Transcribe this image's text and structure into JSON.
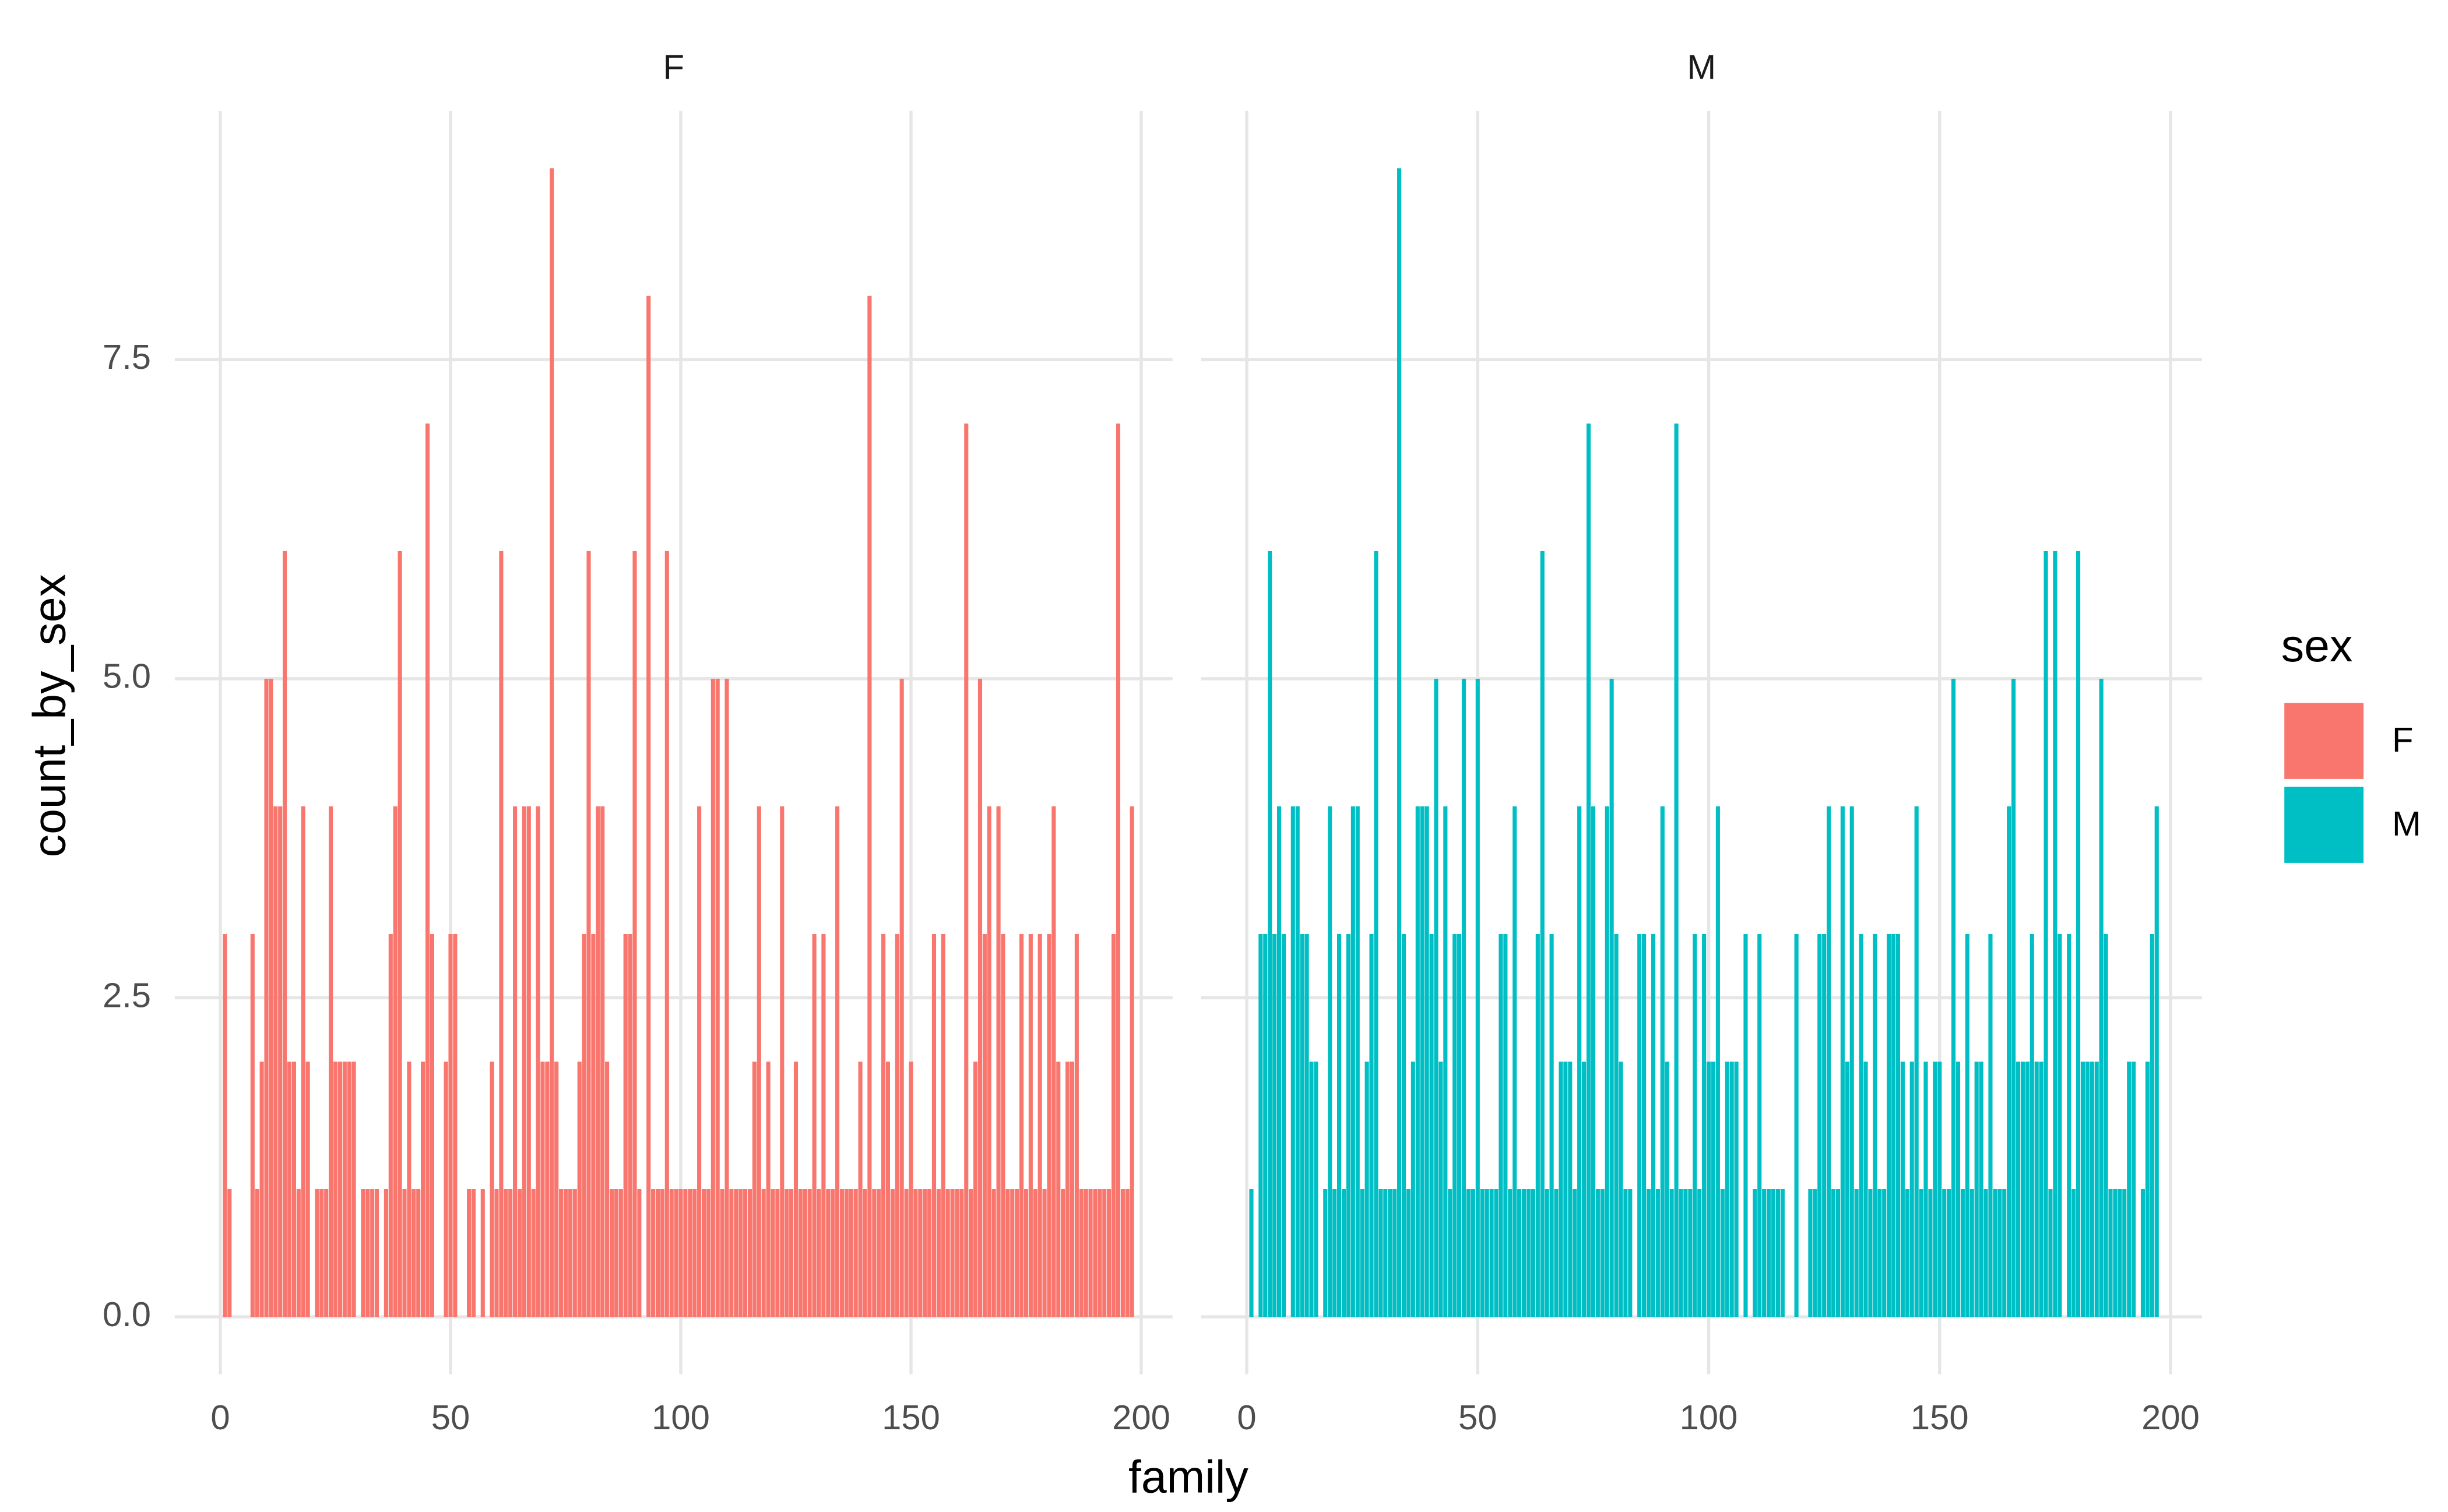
{
  "chart_data": {
    "type": "bar",
    "xlabel": "family",
    "ylabel": "count_by_sex",
    "legend_title": "sex",
    "grid": true,
    "xlim": [
      -9.9,
      206.8
    ],
    "xticks": [
      0,
      50,
      100,
      150,
      200
    ],
    "ylim": [
      -0.45,
      9.45
    ],
    "yticks": [
      {
        "value": 0,
        "label": "0.0"
      },
      2.5,
      {
        "value": 5,
        "label": "5.0"
      },
      7.5
    ],
    "facets": [
      {
        "name": "F",
        "color": "#F8766D",
        "x": [
          1,
          2,
          3,
          4,
          5,
          6,
          7,
          8,
          9,
          10,
          11,
          12,
          13,
          14,
          15,
          16,
          17,
          18,
          19,
          20,
          21,
          22,
          23,
          24,
          25,
          26,
          27,
          28,
          29,
          30,
          31,
          32,
          33,
          34,
          35,
          36,
          37,
          38,
          39,
          40,
          41,
          42,
          43,
          44,
          45,
          46,
          47,
          48,
          49,
          50,
          51,
          52,
          53,
          54,
          55,
          56,
          57,
          58,
          59,
          60,
          61,
          62,
          63,
          64,
          65,
          66,
          67,
          68,
          69,
          70,
          71,
          72,
          73,
          74,
          75,
          76,
          77,
          78,
          79,
          80,
          81,
          82,
          83,
          84,
          85,
          86,
          87,
          88,
          89,
          90,
          91,
          92,
          93,
          94,
          95,
          96,
          97,
          98,
          99,
          100,
          101,
          102,
          103,
          104,
          105,
          106,
          107,
          108,
          109,
          110,
          111,
          112,
          113,
          114,
          115,
          116,
          117,
          118,
          119,
          120,
          121,
          122,
          123,
          124,
          125,
          126,
          127,
          128,
          129,
          130,
          131,
          132,
          133,
          134,
          135,
          136,
          137,
          138,
          139,
          140,
          141,
          142,
          143,
          144,
          145,
          146,
          147,
          148,
          149,
          150,
          151,
          152,
          153,
          154,
          155,
          156,
          157,
          158,
          159,
          160,
          161,
          162,
          163,
          164,
          165,
          166,
          167,
          168,
          169,
          170,
          171,
          172,
          173,
          174,
          175,
          176,
          177,
          178,
          179,
          180,
          181,
          182,
          183,
          184,
          185,
          186,
          187,
          188,
          189,
          190,
          191,
          192,
          193,
          194,
          195,
          196,
          197,
          198
        ],
        "values": [
          3,
          1,
          0,
          0,
          0,
          0,
          3,
          1,
          2,
          5,
          5,
          4,
          4,
          6,
          2,
          2,
          1,
          4,
          2,
          0,
          1,
          1,
          1,
          4,
          2,
          2,
          2,
          2,
          2,
          0,
          1,
          1,
          1,
          1,
          0,
          1,
          3,
          4,
          6,
          1,
          2,
          1,
          1,
          2,
          7,
          3,
          0,
          0,
          2,
          3,
          3,
          0,
          0,
          1,
          1,
          0,
          1,
          0,
          2,
          1,
          6,
          1,
          1,
          4,
          1,
          4,
          4,
          1,
          4,
          2,
          2,
          9,
          2,
          1,
          1,
          1,
          1,
          2,
          3,
          6,
          3,
          4,
          4,
          2,
          1,
          1,
          1,
          3,
          3,
          6,
          1,
          0,
          8,
          1,
          1,
          1,
          6,
          1,
          1,
          1,
          1,
          1,
          1,
          4,
          1,
          1,
          5,
          5,
          1,
          5,
          1,
          1,
          1,
          1,
          1,
          2,
          4,
          1,
          2,
          1,
          1,
          4,
          1,
          1,
          2,
          1,
          1,
          1,
          3,
          1,
          3,
          1,
          1,
          4,
          1,
          1,
          1,
          1,
          2,
          1,
          8,
          1,
          1,
          3,
          2,
          1,
          3,
          5,
          1,
          2,
          1,
          1,
          1,
          1,
          3,
          1,
          3,
          1,
          1,
          1,
          1,
          7,
          1,
          2,
          5,
          3,
          4,
          1,
          4,
          3,
          1,
          1,
          1,
          3,
          1,
          3,
          1,
          3,
          1,
          3,
          4,
          2,
          1,
          2,
          2,
          3,
          1,
          1,
          1,
          1,
          1,
          1,
          1,
          3,
          7,
          1,
          1,
          4
        ]
      },
      {
        "name": "M",
        "color": "#00BFC4",
        "x": [
          1,
          2,
          3,
          4,
          5,
          6,
          7,
          8,
          9,
          10,
          11,
          12,
          13,
          14,
          15,
          16,
          17,
          18,
          19,
          20,
          21,
          22,
          23,
          24,
          25,
          26,
          27,
          28,
          29,
          30,
          31,
          32,
          33,
          34,
          35,
          36,
          37,
          38,
          39,
          40,
          41,
          42,
          43,
          44,
          45,
          46,
          47,
          48,
          49,
          50,
          51,
          52,
          53,
          54,
          55,
          56,
          57,
          58,
          59,
          60,
          61,
          62,
          63,
          64,
          65,
          66,
          67,
          68,
          69,
          70,
          71,
          72,
          73,
          74,
          75,
          76,
          77,
          78,
          79,
          80,
          81,
          82,
          83,
          84,
          85,
          86,
          87,
          88,
          89,
          90,
          91,
          92,
          93,
          94,
          95,
          96,
          97,
          98,
          99,
          100,
          101,
          102,
          103,
          104,
          105,
          106,
          107,
          108,
          109,
          110,
          111,
          112,
          113,
          114,
          115,
          116,
          117,
          118,
          119,
          120,
          121,
          122,
          123,
          124,
          125,
          126,
          127,
          128,
          129,
          130,
          131,
          132,
          133,
          134,
          135,
          136,
          137,
          138,
          139,
          140,
          141,
          142,
          143,
          144,
          145,
          146,
          147,
          148,
          149,
          150,
          151,
          152,
          153,
          154,
          155,
          156,
          157,
          158,
          159,
          160,
          161,
          162,
          163,
          164,
          165,
          166,
          167,
          168,
          169,
          170,
          171,
          172,
          173,
          174,
          175,
          176,
          177,
          178,
          179,
          180,
          181,
          182,
          183,
          184,
          185,
          186,
          187,
          188,
          189,
          190,
          191,
          192,
          193,
          194,
          195,
          196,
          197
        ],
        "values": [
          1,
          0,
          3,
          3,
          6,
          3,
          4,
          3,
          0,
          4,
          4,
          3,
          3,
          2,
          2,
          0,
          1,
          4,
          1,
          3,
          1,
          3,
          4,
          4,
          1,
          2,
          3,
          6,
          1,
          1,
          1,
          1,
          9,
          3,
          1,
          2,
          4,
          4,
          4,
          3,
          5,
          2,
          4,
          1,
          3,
          3,
          5,
          1,
          1,
          5,
          1,
          1,
          1,
          1,
          3,
          3,
          1,
          4,
          1,
          1,
          1,
          1,
          3,
          6,
          1,
          3,
          1,
          2,
          2,
          2,
          1,
          4,
          2,
          7,
          4,
          1,
          1,
          4,
          5,
          3,
          2,
          1,
          1,
          0,
          3,
          3,
          1,
          3,
          1,
          4,
          2,
          1,
          7,
          1,
          1,
          1,
          3,
          1,
          3,
          2,
          2,
          4,
          1,
          2,
          2,
          2,
          0,
          3,
          0,
          1,
          3,
          1,
          1,
          1,
          1,
          1,
          0,
          0,
          3,
          0,
          0,
          1,
          1,
          3,
          3,
          4,
          1,
          1,
          4,
          2,
          4,
          1,
          3,
          2,
          1,
          3,
          1,
          1,
          3,
          3,
          3,
          2,
          1,
          2,
          4,
          1,
          2,
          1,
          2,
          2,
          1,
          1,
          5,
          2,
          1,
          3,
          1,
          2,
          2,
          1,
          3,
          1,
          1,
          1,
          4,
          5,
          2,
          2,
          2,
          3,
          2,
          2,
          6,
          1,
          6,
          3,
          0,
          3,
          1,
          6,
          2,
          2,
          2,
          2,
          5,
          3,
          1,
          1,
          1,
          1,
          2,
          2,
          0,
          1,
          2,
          3,
          4
        ]
      }
    ]
  }
}
